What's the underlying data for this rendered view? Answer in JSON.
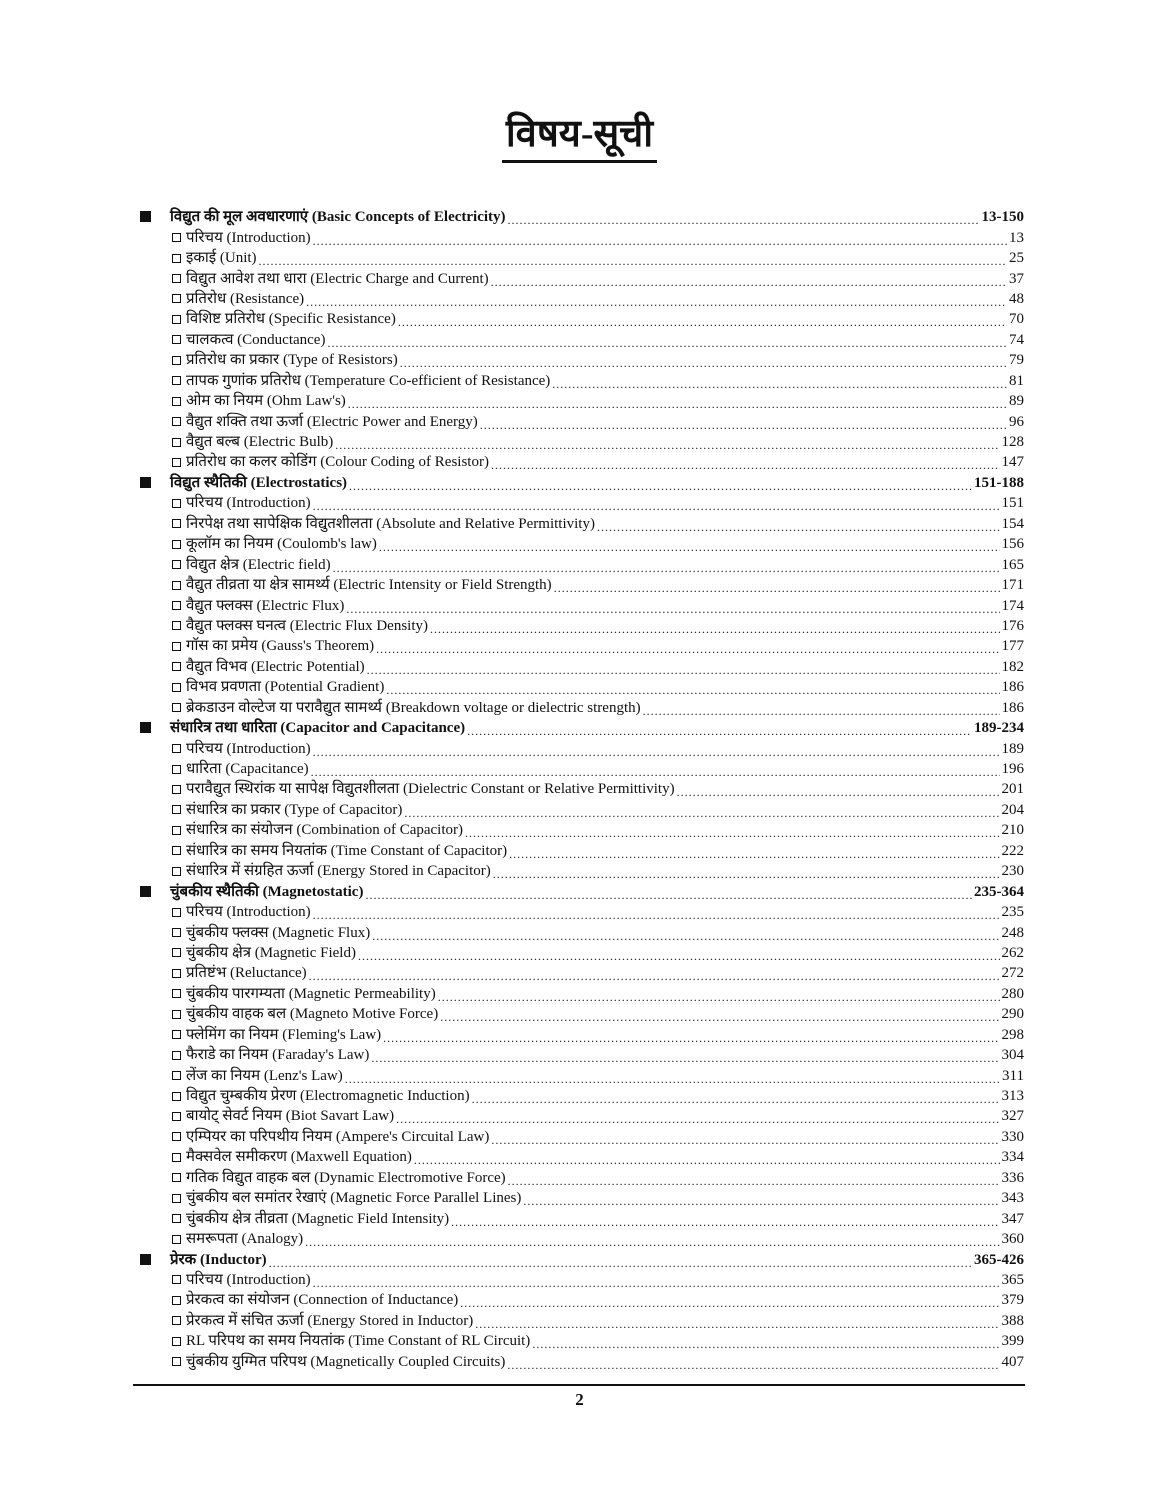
{
  "title": "विषय-सूची",
  "page_number": "2",
  "sections": [
    {
      "label": "विद्युत की मूल अवधारणाएं (Basic Concepts of Electricity)",
      "pages": "13-150",
      "items": [
        {
          "label": "परिचय (Introduction)",
          "page": "13"
        },
        {
          "label": "इकाई (Unit)",
          "page": "25"
        },
        {
          "label": "विद्युत आवेश तथा धारा (Electric Charge and Current)",
          "page": "37"
        },
        {
          "label": "प्रतिरोध (Resistance)",
          "page": "48"
        },
        {
          "label": "विशिष्ट प्रतिरोध (Specific Resistance)",
          "page": "70"
        },
        {
          "label": "चालकत्व (Conductance)",
          "page": "74"
        },
        {
          "label": "प्रतिरोध का प्रकार (Type of Resistors)",
          "page": "79"
        },
        {
          "label": "तापक गुणांक प्रतिरोध (Temperature Co-efficient of Resistance)",
          "page": "81"
        },
        {
          "label": "ओम का नियम (Ohm Law's)",
          "page": "89"
        },
        {
          "label": "वैद्युत शक्ति तथा ऊर्जा (Electric Power and Energy)",
          "page": "96"
        },
        {
          "label": "वैद्युत बल्ब (Electric Bulb)",
          "page": "128"
        },
        {
          "label": "प्रतिरोध का कलर कोडिंग (Colour Coding of Resistor)",
          "page": "147"
        }
      ]
    },
    {
      "label": "विद्युत स्थैतिकी (Electrostatics)",
      "pages": "151-188",
      "items": [
        {
          "label": "परिचय (Introduction)",
          "page": "151"
        },
        {
          "label": "निरपेक्ष तथा सापेक्षिक विद्युतशीलता (Absolute and Relative Permittivity)",
          "page": "154"
        },
        {
          "label": "कूलॉम का नियम (Coulomb's law)",
          "page": "156"
        },
        {
          "label": "विद्युत क्षेत्र (Electric field)",
          "page": "165"
        },
        {
          "label": "वैद्युत तीव्रता या क्षेत्र सामर्थ्य (Electric Intensity or Field Strength)",
          "page": "171"
        },
        {
          "label": "वैद्युत फ्लक्स (Electric Flux)",
          "page": "174"
        },
        {
          "label": "वैद्युत फ्लक्स घनत्व (Electric Flux Density)",
          "page": "176"
        },
        {
          "label": "गॉस का प्रमेय (Gauss's Theorem)",
          "page": "177"
        },
        {
          "label": "वैद्युत विभव (Electric Potential)",
          "page": "182"
        },
        {
          "label": "विभव प्रवणता (Potential Gradient)",
          "page": "186"
        },
        {
          "label": "ब्रेकडाउन वोल्टेज या परावैद्युत सामर्थ्य (Breakdown voltage or dielectric strength)",
          "page": "186"
        }
      ]
    },
    {
      "label": "संधारित्र तथा धारिता (Capacitor and Capacitance)",
      "pages": "189-234",
      "items": [
        {
          "label": "परिचय (Introduction)",
          "page": "189"
        },
        {
          "label": "धारिता (Capacitance)",
          "page": "196"
        },
        {
          "label": "परावैद्युत स्थिरांक या सापेक्ष विद्युतशीलता (Dielectric Constant or Relative Permittivity)",
          "page": "201"
        },
        {
          "label": "संधारित्र का प्रकार (Type of Capacitor)",
          "page": "204"
        },
        {
          "label": "संधारित्र का संयोजन (Combination of Capacitor)",
          "page": "210"
        },
        {
          "label": "संधारित्र का समय नियतांक (Time Constant of Capacitor)",
          "page": "222"
        },
        {
          "label": "संधारित्र में संग्रहित ऊर्जा (Energy Stored in Capacitor)",
          "page": "230"
        }
      ]
    },
    {
      "label": "चुंबकीय स्थैतिकी (Magnetostatic)",
      "pages": "235-364",
      "items": [
        {
          "label": "परिचय (Introduction)",
          "page": "235"
        },
        {
          "label": "चुंबकीय फ्लक्स (Magnetic Flux)",
          "page": "248"
        },
        {
          "label": "चुंबकीय क्षेत्र (Magnetic Field)",
          "page": "262"
        },
        {
          "label": "प्रतिष्टंभ (Reluctance)",
          "page": "272"
        },
        {
          "label": "चुंबकीय पारगम्यता  (Magnetic Permeability)",
          "page": "280"
        },
        {
          "label": "चुंबकीय वाहक बल (Magneto Motive Force)",
          "page": "290"
        },
        {
          "label": "फ्लेमिंग का नियम (Fleming's Law)",
          "page": "298"
        },
        {
          "label": "फैराडे का नियम (Faraday's Law)",
          "page": "304"
        },
        {
          "label": "लेंज का नियम (Lenz's Law)",
          "page": "311"
        },
        {
          "label": "विद्युत चुम्बकीय प्रेरण (Electromagnetic Induction)",
          "page": "313"
        },
        {
          "label": "बायोट् सेवर्ट नियम (Biot Savart Law)",
          "page": "327"
        },
        {
          "label": "एम्पियर का परिपथीय नियम (Ampere's Circuital Law)",
          "page": "330"
        },
        {
          "label": "मैक्सवेल समीकरण (Maxwell Equation)",
          "page": "334"
        },
        {
          "label": "गतिक विद्युत वाहक बल (Dynamic Electromotive Force)",
          "page": "336"
        },
        {
          "label": "चुंबकीय बल समांतर रेखाएं (Magnetic Force Parallel Lines)",
          "page": "343"
        },
        {
          "label": "चुंबकीय क्षेत्र तीव्रता (Magnetic Field Intensity)",
          "page": "347"
        },
        {
          "label": "समरूपता (Analogy)",
          "page": "360"
        }
      ]
    },
    {
      "label": "प्रेरक (Inductor)",
      "pages": "365-426",
      "items": [
        {
          "label": "परिचय (Introduction)",
          "page": "365"
        },
        {
          "label": "प्रेरकत्व का संयोजन (Connection of Inductance)",
          "page": "379"
        },
        {
          "label": "प्रेरकत्व में संचित ऊर्जा (Energy Stored in Inductor)",
          "page": "388"
        },
        {
          "label": "RL परिपथ का समय नियतांक (Time Constant of RL Circuit)",
          "page": "399"
        },
        {
          "label": "चुंबकीय युग्मित परिपथ (Magnetically Coupled Circuits)",
          "page": "407"
        }
      ]
    }
  ]
}
